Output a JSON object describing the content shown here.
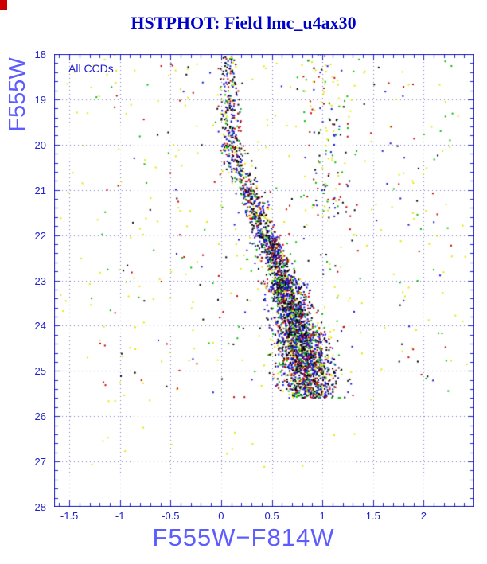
{
  "colors": {
    "title": "#0000cc",
    "frame": "#2222cc",
    "grid": "#7a7ad0",
    "tick_labels": "#2222cc",
    "axis_labels": "#5c5cff",
    "annotation": "#2222cc",
    "corner_marker": "#cc0000",
    "page_background": "#ffffff"
  },
  "chart_data": {
    "type": "scatter",
    "title": "HSTPHOT: Field lmc_u4ax30",
    "xlabel": "F555W−F814W",
    "ylabel": "F555W",
    "annotation": "All CCDs",
    "xlim": [
      -1.65,
      2.5
    ],
    "ylim": [
      18,
      28
    ],
    "x_ticks": [
      -1.5,
      -1,
      -0.5,
      0,
      0.5,
      1,
      1.5,
      2
    ],
    "x_tick_labels": [
      "-1.5",
      "-1",
      "-0.5",
      "0",
      "0.5",
      "1",
      "1.5",
      "2"
    ],
    "y_ticks": [
      18,
      19,
      20,
      21,
      22,
      23,
      24,
      25,
      26,
      27,
      28
    ],
    "y_tick_labels": [
      "18",
      "19",
      "20",
      "21",
      "22",
      "23",
      "24",
      "25",
      "26",
      "27",
      "28"
    ],
    "x_minor_step": 0.1,
    "y_minor_step": 0.2,
    "grid": "dotted",
    "legend": "none",
    "seed": 42,
    "point_size": 2,
    "point_colors": [
      "#000000",
      "#1515dd",
      "#cc0000",
      "#00bb00",
      "#e6e600"
    ],
    "ridge_anchors": [
      [
        18,
        0.07
      ],
      [
        19,
        0.07
      ],
      [
        19.8,
        0.1
      ],
      [
        20.5,
        0.17
      ],
      [
        21,
        0.27
      ],
      [
        21.5,
        0.35
      ],
      [
        22,
        0.44
      ],
      [
        22.5,
        0.53
      ],
      [
        23,
        0.61
      ],
      [
        23.5,
        0.68
      ],
      [
        24,
        0.74
      ],
      [
        24.5,
        0.8
      ],
      [
        25,
        0.85
      ],
      [
        25.6,
        0.9
      ]
    ],
    "ridge_bins": [
      {
        "y0": 18.0,
        "y1": 19.0,
        "n": 80,
        "s": 0.05
      },
      {
        "y0": 19.0,
        "y1": 20.0,
        "n": 120,
        "s": 0.05
      },
      {
        "y0": 20.0,
        "y1": 21.0,
        "n": 170,
        "s": 0.06
      },
      {
        "y0": 21.0,
        "y1": 22.0,
        "n": 230,
        "s": 0.065
      },
      {
        "y0": 22.0,
        "y1": 23.0,
        "n": 400,
        "s": 0.07
      },
      {
        "y0": 23.0,
        "y1": 24.0,
        "n": 700,
        "s": 0.09
      },
      {
        "y0": 24.0,
        "y1": 25.0,
        "n": 950,
        "s": 0.12
      },
      {
        "y0": 25.0,
        "y1": 25.6,
        "n": 400,
        "s": 0.14
      }
    ],
    "ridge_colors": [
      [
        "#000000",
        0.3
      ],
      [
        "#1515dd",
        0.34
      ],
      [
        "#cc0000",
        0.16
      ],
      [
        "#00bb00",
        0.12
      ],
      [
        "#e6e600",
        0.08
      ]
    ],
    "band": {
      "x": 1.03,
      "sx": 0.13,
      "y0": 18.0,
      "y1": 21.6,
      "n": 130,
      "colors": [
        [
          "#e6e600",
          0.3
        ],
        [
          "#00bb00",
          0.2
        ],
        [
          "#cc0000",
          0.2
        ],
        [
          "#000000",
          0.15
        ],
        [
          "#1515dd",
          0.15
        ]
      ]
    },
    "background": [
      {
        "color": "#e6e600",
        "n": 240,
        "x0": -1.6,
        "x1": 2.45,
        "y0": 18.0,
        "y1": 25.7
      },
      {
        "color": "#e6e600",
        "n": 14,
        "x0": -1.3,
        "x1": 1.6,
        "y0": 25.7,
        "y1": 27.2
      },
      {
        "color": "#00bb00",
        "n": 85,
        "x0": -1.3,
        "x1": 2.3,
        "y0": 18.0,
        "y1": 25.6
      },
      {
        "color": "#cc0000",
        "n": 70,
        "x0": -1.2,
        "x1": 2.3,
        "y0": 18.0,
        "y1": 25.6
      },
      {
        "color": "#000000",
        "n": 60,
        "x0": -1.2,
        "x1": 2.2,
        "y0": 18.0,
        "y1": 25.5
      },
      {
        "color": "#1515dd",
        "n": 45,
        "x0": -1.0,
        "x1": 2.2,
        "y0": 18.2,
        "y1": 25.5
      }
    ]
  }
}
